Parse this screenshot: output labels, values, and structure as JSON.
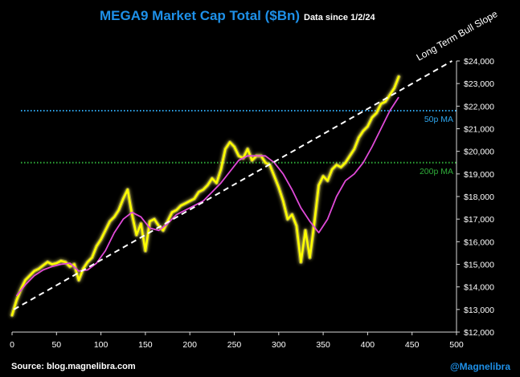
{
  "header": {
    "title": "MEGA9 Market Cap Total ($Bn)",
    "subtitle": "Data since 1/2/24"
  },
  "footer": {
    "source": "Source: blog.magnelibra.com",
    "handle": "@Magnelibra"
  },
  "colors": {
    "background": "#000000",
    "price_line": "#ffff00",
    "price_glow": "#fff56a",
    "ma_line": "#e04ad8",
    "ma50": "#2ea6ee",
    "ma200": "#2fae3a",
    "trend": "#ffffff",
    "title": "#1e90e8"
  },
  "chart_data": {
    "type": "line",
    "title": "MEGA9 Market Cap Total ($Bn)",
    "xlim": [
      0,
      500
    ],
    "ylim": [
      12000,
      24000
    ],
    "x_ticks": [
      "0",
      "50",
      "100",
      "150",
      "200",
      "250",
      "300",
      "350",
      "400",
      "450",
      "500"
    ],
    "y_ticks": [
      "$12,000",
      "$13,000",
      "$14,000",
      "$15,000",
      "$16,000",
      "$17,000",
      "$18,000",
      "$19,000",
      "$20,000",
      "$21,000",
      "$22,000",
      "$23,000",
      "$24,000"
    ],
    "y_axis_position": "right",
    "grid": false,
    "series": [
      {
        "name": "",
        "style": "yellow-glow",
        "x": [
          0,
          5,
          10,
          15,
          20,
          25,
          30,
          35,
          40,
          45,
          50,
          55,
          60,
          65,
          70,
          75,
          80,
          85,
          90,
          95,
          100,
          105,
          110,
          115,
          120,
          125,
          130,
          135,
          140,
          145,
          150,
          155,
          160,
          165,
          170,
          175,
          180,
          185,
          190,
          195,
          200,
          205,
          210,
          215,
          220,
          225,
          230,
          235,
          240,
          245,
          250,
          255,
          260,
          265,
          270,
          275,
          280,
          285,
          290,
          295,
          300,
          305,
          310,
          315,
          320,
          325,
          330,
          335,
          340,
          345,
          350,
          355,
          360,
          365,
          370,
          375,
          380,
          385,
          390,
          395,
          400,
          405,
          410,
          415,
          420,
          425,
          430,
          435
        ],
        "values": [
          12750,
          13400,
          13900,
          14300,
          14500,
          14700,
          14800,
          14950,
          15100,
          15000,
          15050,
          15150,
          15100,
          14900,
          15000,
          14300,
          14800,
          15100,
          15300,
          15800,
          16100,
          16500,
          16900,
          17100,
          17400,
          17900,
          18300,
          17200,
          16300,
          16800,
          15600,
          16900,
          17000,
          16700,
          16500,
          16900,
          17300,
          17400,
          17600,
          17700,
          17800,
          17900,
          18200,
          18300,
          18500,
          18800,
          18600,
          19200,
          20100,
          20400,
          20200,
          19800,
          19700,
          20100,
          19600,
          19800,
          19800,
          19500,
          19400,
          18900,
          18400,
          17800,
          17000,
          17200,
          16700,
          15100,
          16500,
          15300,
          16800,
          18500,
          18900,
          18700,
          19200,
          19400,
          19300,
          19500,
          19800,
          20100,
          20600,
          20900,
          21100,
          21500,
          21700,
          22100,
          22200,
          22500,
          22800,
          23300
        ]
      },
      {
        "name": "",
        "style": "magenta",
        "x": [
          5,
          15,
          25,
          35,
          45,
          55,
          65,
          75,
          85,
          95,
          105,
          115,
          125,
          135,
          145,
          155,
          165,
          175,
          185,
          195,
          205,
          215,
          225,
          235,
          245,
          255,
          265,
          275,
          285,
          295,
          305,
          315,
          325,
          335,
          345,
          355,
          365,
          375,
          385,
          395,
          405,
          415,
          425,
          435
        ],
        "values": [
          13600,
          14100,
          14500,
          14750,
          14900,
          15000,
          15050,
          14700,
          14750,
          15050,
          15600,
          16400,
          17000,
          17300,
          17100,
          16600,
          16500,
          16800,
          17200,
          17400,
          17600,
          17800,
          18200,
          18600,
          19100,
          19600,
          19800,
          19800,
          19800,
          19500,
          19000,
          18300,
          17500,
          16900,
          16400,
          17000,
          18000,
          18700,
          19000,
          19500,
          20200,
          21000,
          21800,
          22400
        ]
      }
    ],
    "reference_lines": [
      {
        "label": "50p MA",
        "value": 21800,
        "color": "#2ea6ee",
        "style": "dotted"
      },
      {
        "label": "200p MA",
        "value": 19500,
        "color": "#2fae3a",
        "style": "dotted"
      }
    ],
    "trend_line": {
      "label": "Long Term Bull Slope",
      "x": [
        2,
        495
      ],
      "values": [
        13000,
        24000
      ],
      "style": "dashed"
    }
  }
}
